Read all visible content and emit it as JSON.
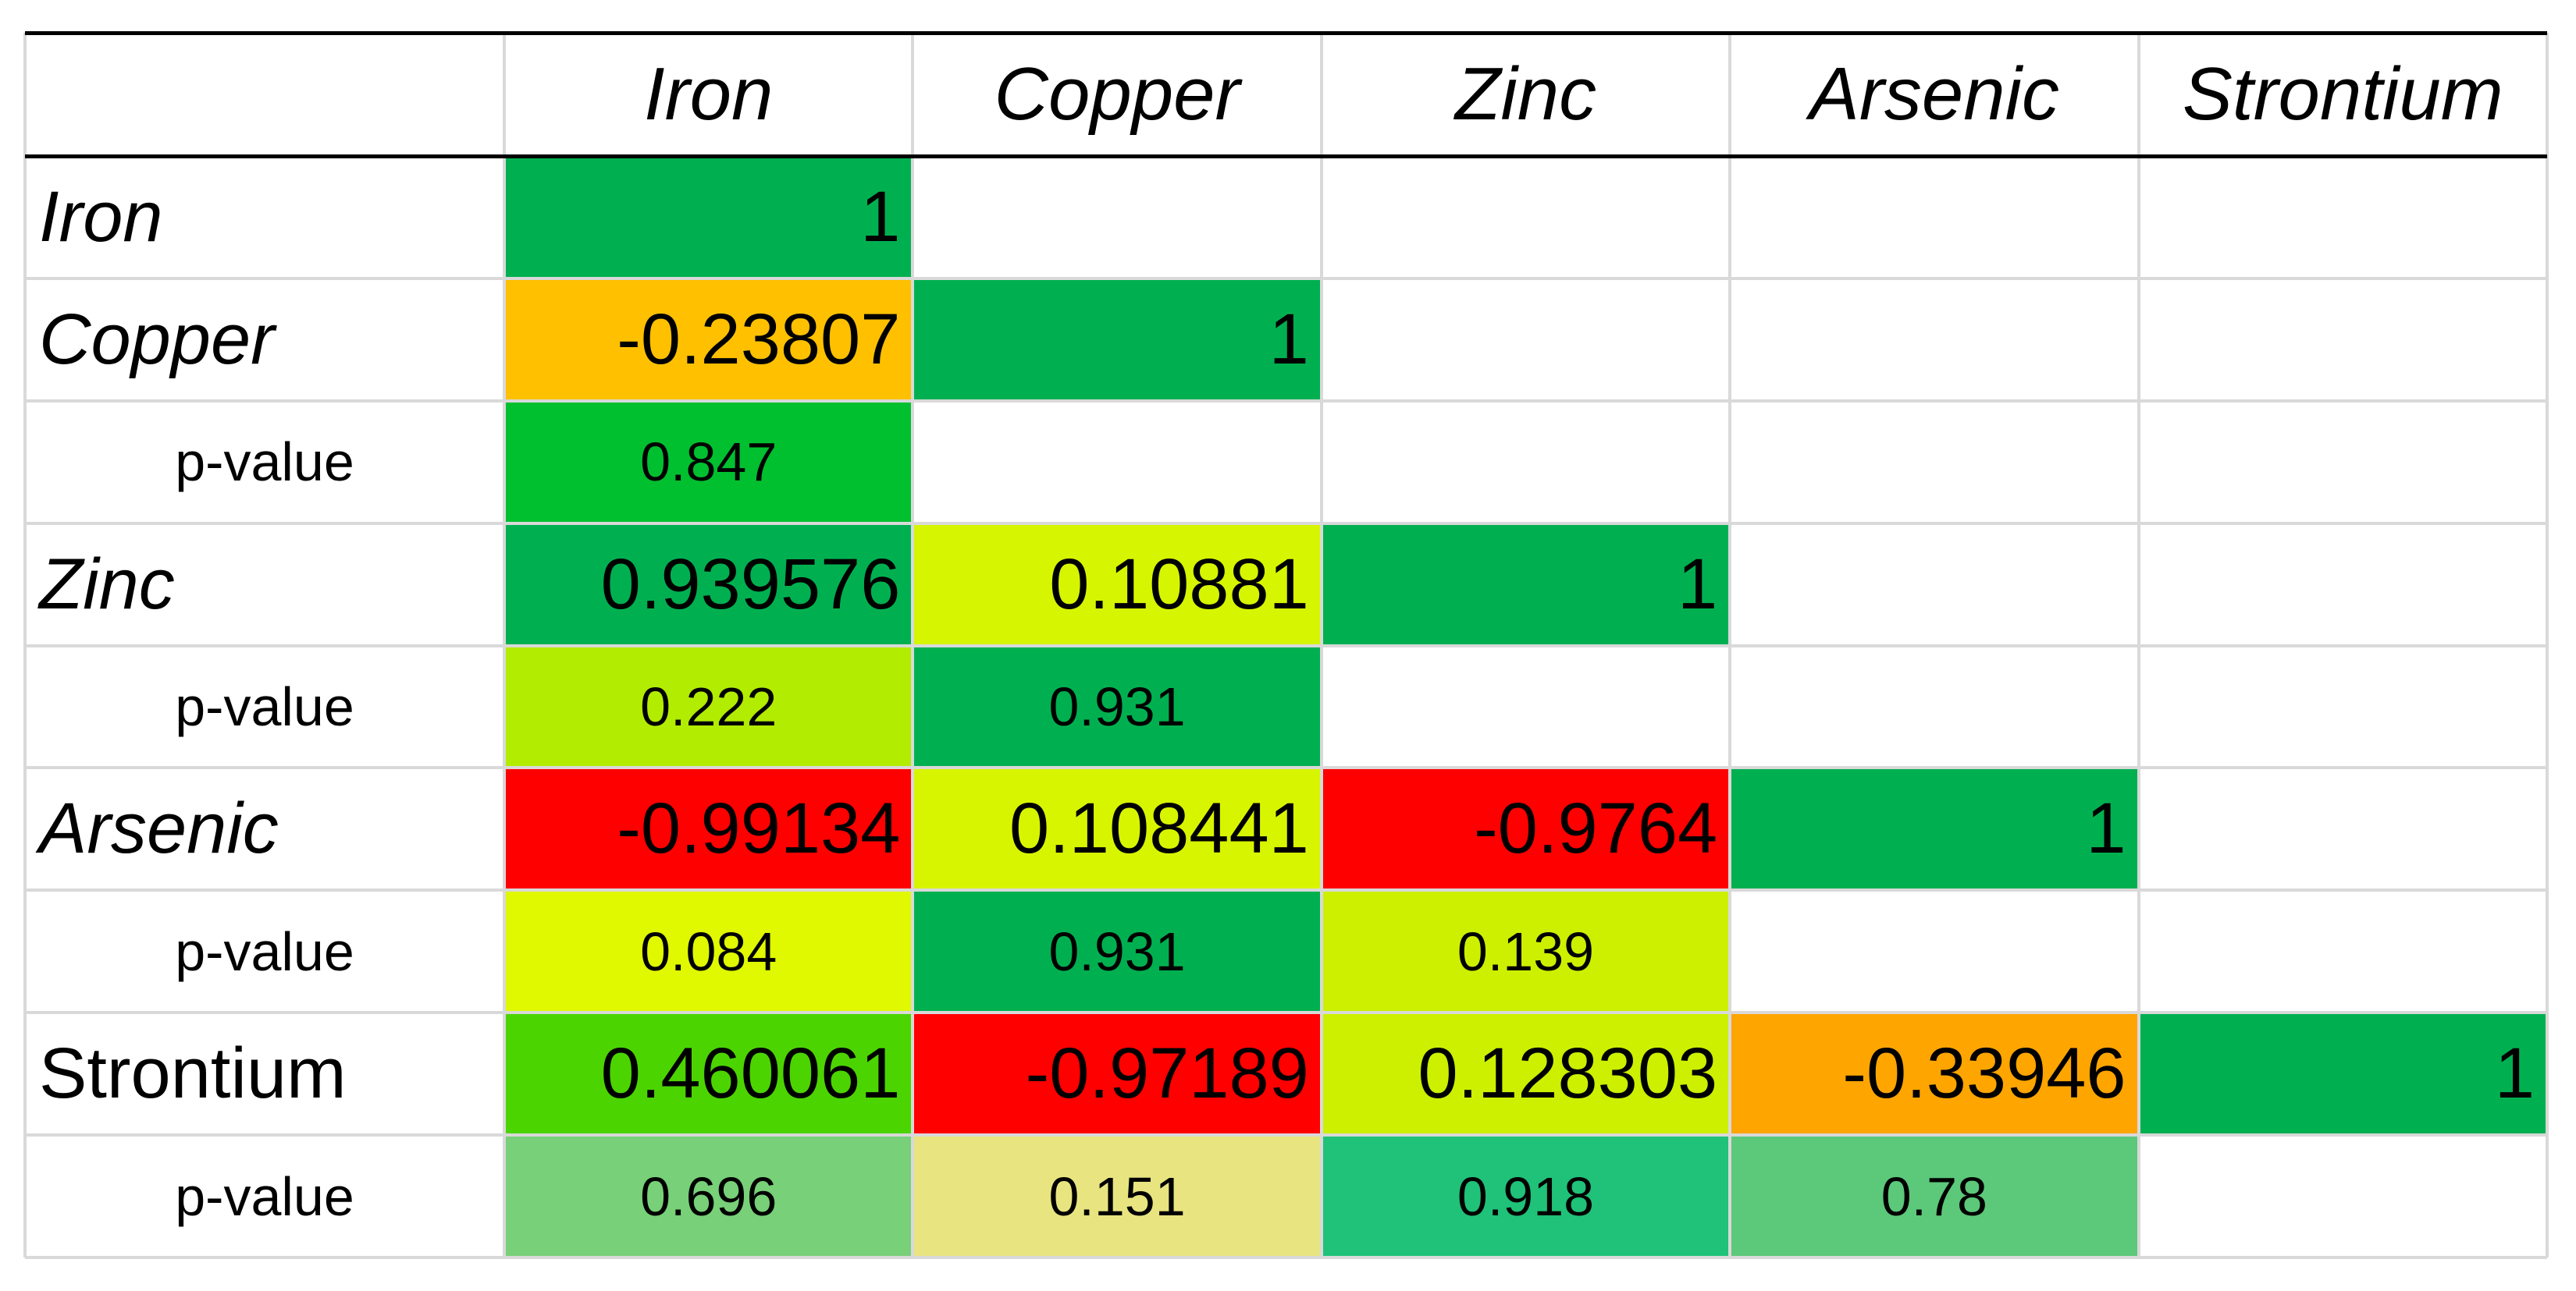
{
  "table": {
    "header": [
      "Iron",
      "Copper",
      "Zinc",
      "Arsenic",
      "Strontium"
    ],
    "rows": [
      {
        "label": "Iron",
        "italic": true,
        "cells": [
          {
            "text": "1",
            "color": "#00b050"
          }
        ]
      },
      {
        "label": "Copper",
        "italic": true,
        "cells": [
          {
            "text": "-0.23807",
            "color": "#ffc000"
          },
          {
            "text": "1",
            "color": "#00b050"
          }
        ],
        "p_label": "p-value",
        "p_cells": [
          {
            "text": "0.847",
            "color": "#00c030"
          }
        ]
      },
      {
        "label": "Zinc",
        "italic": true,
        "cells": [
          {
            "text": "0.939576",
            "color": "#00b050"
          },
          {
            "text": "0.10881",
            "color": "#d6f500"
          },
          {
            "text": "1",
            "color": "#00b050"
          }
        ],
        "p_label": "p-value",
        "p_cells": [
          {
            "text": "0.222",
            "color": "#b2ec00"
          },
          {
            "text": "0.931",
            "color": "#00b050"
          }
        ]
      },
      {
        "label": "Arsenic",
        "italic": true,
        "cells": [
          {
            "text": "-0.99134",
            "color": "#ff0000"
          },
          {
            "text": "0.108441",
            "color": "#d8f500"
          },
          {
            "text": "-0.9764",
            "color": "#ff0000"
          },
          {
            "text": "1",
            "color": "#00b050"
          }
        ],
        "p_label": "p-value",
        "p_cells": [
          {
            "text": "0.084",
            "color": "#e0f800"
          },
          {
            "text": "0.931",
            "color": "#00b050"
          },
          {
            "text": "0.139",
            "color": "#ccf000"
          }
        ]
      },
      {
        "label": "Strontium",
        "italic": false,
        "cells": [
          {
            "text": "0.460061",
            "color": "#4cd400"
          },
          {
            "text": "-0.97189",
            "color": "#ff0000"
          },
          {
            "text": "0.128303",
            "color": "#ccf000"
          },
          {
            "text": "-0.33946",
            "color": "#ffa500"
          },
          {
            "text": "1",
            "color": "#00b050"
          }
        ],
        "p_label": "p-value",
        "p_cells": [
          {
            "text": "0.696",
            "color": "#78d078"
          },
          {
            "text": "0.151",
            "color": "#e8e480"
          },
          {
            "text": "0.918",
            "color": "#1fc278"
          },
          {
            "text": "0.78",
            "color": "#5cc87a"
          }
        ]
      }
    ]
  }
}
